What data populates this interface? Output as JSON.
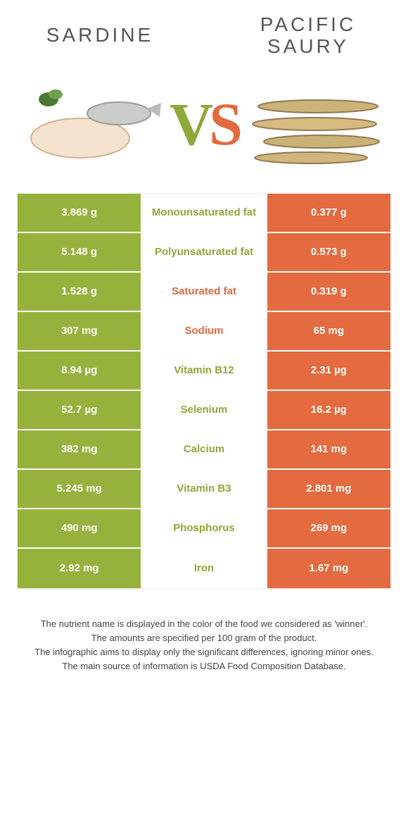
{
  "colors": {
    "left": "#97b23c",
    "right": "#e46a3f",
    "left_text": "#8fa83b",
    "right_text": "#e26a3f",
    "row_text_white": "#ffffff"
  },
  "header": {
    "left_title": "Sardine",
    "right_title": "Pacific saury",
    "vs_v": "V",
    "vs_s": "S"
  },
  "rows": [
    {
      "label": "Monounsaturated fat",
      "left": "3.869 g",
      "right": "0.377 g",
      "winner": "left"
    },
    {
      "label": "Polyunsaturated fat",
      "left": "5.148 g",
      "right": "0.573 g",
      "winner": "left"
    },
    {
      "label": "Saturated fat",
      "left": "1.528 g",
      "right": "0.319 g",
      "winner": "right"
    },
    {
      "label": "Sodium",
      "left": "307 mg",
      "right": "65 mg",
      "winner": "right"
    },
    {
      "label": "Vitamin B12",
      "left": "8.94 µg",
      "right": "2.31 µg",
      "winner": "left"
    },
    {
      "label": "Selenium",
      "left": "52.7 µg",
      "right": "16.2 µg",
      "winner": "left"
    },
    {
      "label": "Calcium",
      "left": "382 mg",
      "right": "141 mg",
      "winner": "left"
    },
    {
      "label": "Vitamin B3",
      "left": "5.245 mg",
      "right": "2.801 mg",
      "winner": "left"
    },
    {
      "label": "Phosphorus",
      "left": "490 mg",
      "right": "269 mg",
      "winner": "left"
    },
    {
      "label": "Iron",
      "left": "2.92 mg",
      "right": "1.67 mg",
      "winner": "left"
    }
  ],
  "footnotes": [
    "The nutrient name is displayed in the color of the food we considered as 'winner'.",
    "The amounts are specified per 100 gram of the product.",
    "The infographic aims to display only the significant differences, ignoring minor ones.",
    "The main source of information is USDA Food Composition Database."
  ]
}
